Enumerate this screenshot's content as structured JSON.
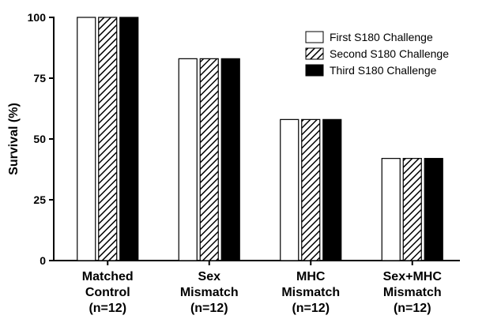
{
  "chart_data": {
    "type": "bar",
    "title": "",
    "xlabel": "",
    "ylabel": "Survival (%)",
    "ylim": [
      0,
      100
    ],
    "yticks": [
      "0",
      "25",
      "50",
      "75",
      "100"
    ],
    "grid": false,
    "legend_position": "top-right",
    "categories": [
      "Matched Control (n=12)",
      "Sex Mismatch (n=12)",
      "MHC Mismatch (n=12)",
      "Sex+MHC Mismatch (n=12)"
    ],
    "category_lines": [
      [
        "Matched",
        "Control",
        "(n=12)"
      ],
      [
        "Sex",
        "Mismatch",
        "(n=12)"
      ],
      [
        "MHC",
        "Mismatch",
        "(n=12)"
      ],
      [
        "Sex+MHC",
        "Mismatch",
        "(n=12)"
      ]
    ],
    "series": [
      {
        "name": "First S180 Challenge",
        "fill": "open",
        "values": [
          100,
          83,
          58,
          42
        ]
      },
      {
        "name": "Second S180 Challenge",
        "fill": "hatched",
        "values": [
          100,
          83,
          58,
          42
        ]
      },
      {
        "name": "Third S180 Challenge",
        "fill": "solid",
        "values": [
          100,
          83,
          58,
          42
        ]
      }
    ],
    "colors": {
      "stroke": "#000000",
      "solid": "#000000",
      "open": "#ffffff"
    }
  }
}
